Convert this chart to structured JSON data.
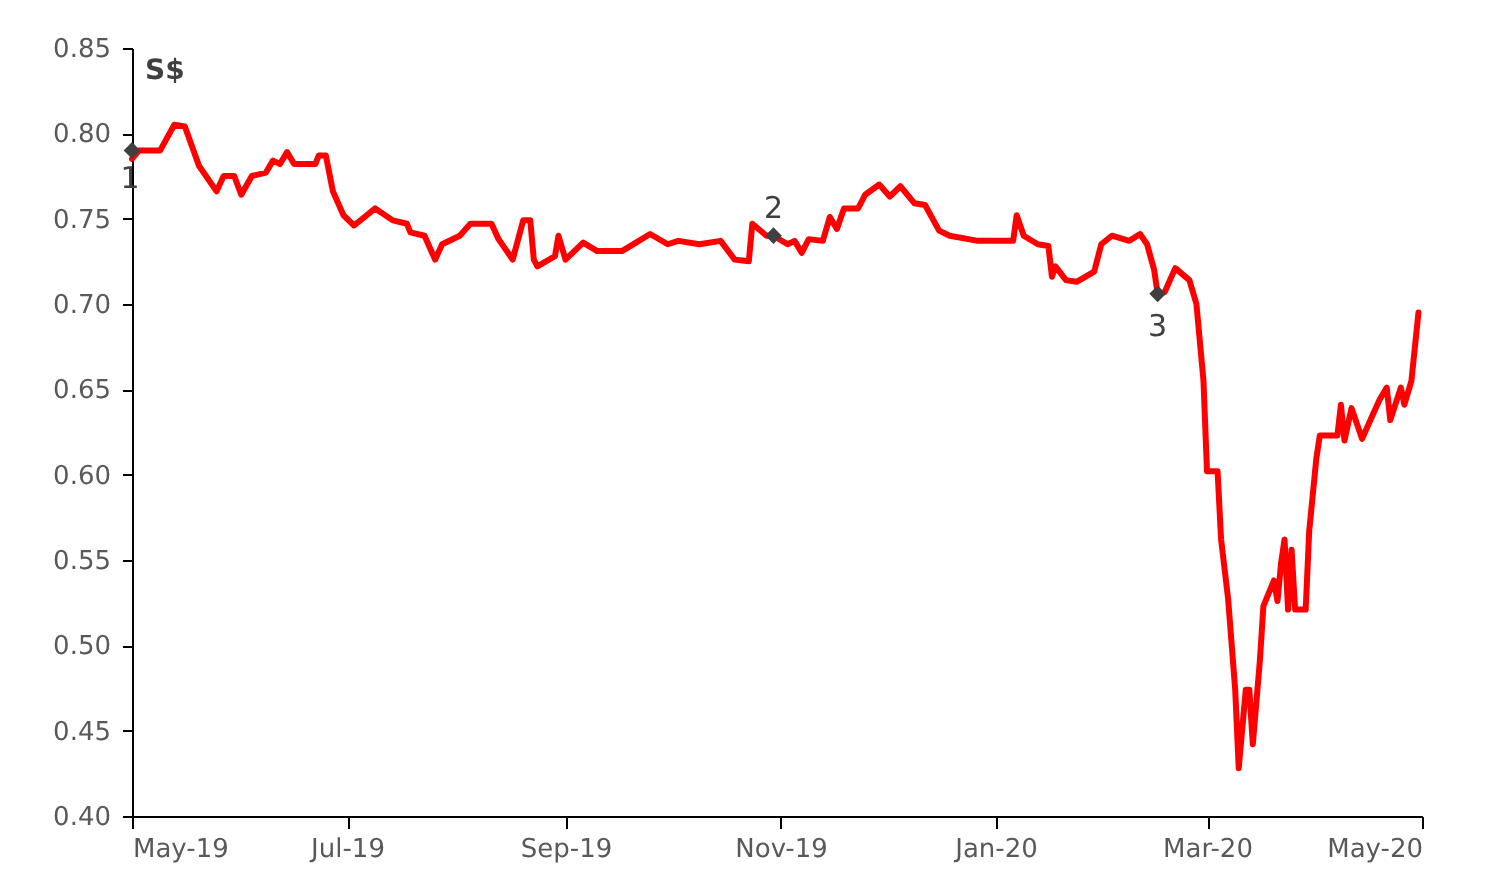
{
  "chart_data": {
    "type": "line",
    "ylabel": "S$",
    "xlim": [
      "2019-05-01",
      "2020-05-01"
    ],
    "ylim": [
      0.4,
      0.85
    ],
    "xticks": [
      {
        "value": "2019-05-01",
        "label": "May-19"
      },
      {
        "value": "2019-07-01",
        "label": "Jul-19"
      },
      {
        "value": "2019-09-01",
        "label": "Sep-19"
      },
      {
        "value": "2019-11-01",
        "label": "Nov-19"
      },
      {
        "value": "2020-01-01",
        "label": "Jan-20"
      },
      {
        "value": "2020-03-01",
        "label": "Mar-20"
      },
      {
        "value": "2020-05-01",
        "label": "May-20"
      }
    ],
    "yticks": [
      {
        "value": 0.4,
        "label": "0.40"
      },
      {
        "value": 0.45,
        "label": "0.45"
      },
      {
        "value": 0.5,
        "label": "0.50"
      },
      {
        "value": 0.55,
        "label": "0.55"
      },
      {
        "value": 0.6,
        "label": "0.60"
      },
      {
        "value": 0.65,
        "label": "0.65"
      },
      {
        "value": 0.7,
        "label": "0.70"
      },
      {
        "value": 0.75,
        "label": "0.75"
      },
      {
        "value": 0.8,
        "label": "0.80"
      },
      {
        "value": 0.85,
        "label": "0.85"
      }
    ],
    "series": [
      {
        "color": "#ff0000",
        "x": [
          "2019-05-01",
          "2019-05-03",
          "2019-05-09",
          "2019-05-13",
          "2019-05-16",
          "2019-05-20",
          "2019-05-25",
          "2019-05-27",
          "2019-05-30",
          "2019-06-01",
          "2019-06-04",
          "2019-06-08",
          "2019-06-10",
          "2019-06-12",
          "2019-06-14",
          "2019-06-16",
          "2019-06-22",
          "2019-06-23",
          "2019-06-25",
          "2019-06-27",
          "2019-06-30",
          "2019-07-03",
          "2019-07-09",
          "2019-07-14",
          "2019-07-18",
          "2019-07-19",
          "2019-07-23",
          "2019-07-26",
          "2019-07-28",
          "2019-08-02",
          "2019-08-05",
          "2019-08-11",
          "2019-08-13",
          "2019-08-17",
          "2019-08-20",
          "2019-08-22",
          "2019-08-23",
          "2019-08-24",
          "2019-08-29",
          "2019-08-30",
          "2019-09-01",
          "2019-09-06",
          "2019-09-10",
          "2019-09-17",
          "2019-09-21",
          "2019-09-25",
          "2019-09-30",
          "2019-10-03",
          "2019-10-09",
          "2019-10-15",
          "2019-10-19",
          "2019-10-23",
          "2019-10-24",
          "2019-10-28",
          "2019-10-30",
          "2019-11-03",
          "2019-11-05",
          "2019-11-07",
          "2019-11-09",
          "2019-11-13",
          "2019-11-15",
          "2019-11-17",
          "2019-11-19",
          "2019-11-23",
          "2019-11-25",
          "2019-11-29",
          "2019-12-02",
          "2019-12-05",
          "2019-12-09",
          "2019-12-12",
          "2019-12-16",
          "2019-12-19",
          "2019-12-27",
          "2020-01-04",
          "2020-01-06",
          "2020-01-07",
          "2020-01-09",
          "2020-01-13",
          "2020-01-16",
          "2020-01-17",
          "2020-01-18",
          "2020-01-21",
          "2020-01-24",
          "2020-01-29",
          "2020-01-31",
          "2020-02-03",
          "2020-02-08",
          "2020-02-11",
          "2020-02-13",
          "2020-02-15",
          "2020-02-16",
          "2020-02-18",
          "2020-02-21",
          "2020-02-25",
          "2020-02-27",
          "2020-02-29",
          "2020-03-01",
          "2020-03-04",
          "2020-03-05",
          "2020-03-07",
          "2020-03-09",
          "2020-03-10",
          "2020-03-12",
          "2020-03-13",
          "2020-03-14",
          "2020-03-16",
          "2020-03-17",
          "2020-03-20",
          "2020-03-21",
          "2020-03-22",
          "2020-03-23",
          "2020-03-24",
          "2020-03-25",
          "2020-03-26",
          "2020-03-29",
          "2020-03-30",
          "2020-04-01",
          "2020-04-02",
          "2020-04-07",
          "2020-04-08",
          "2020-04-09",
          "2020-04-11",
          "2020-04-14",
          "2020-04-17",
          "2020-04-19",
          "2020-04-21",
          "2020-04-22",
          "2020-04-25",
          "2020-04-26",
          "2020-04-28",
          "2020-04-29",
          "2020-04-30"
        ],
        "values": [
          0.785,
          0.79,
          0.79,
          0.805,
          0.804,
          0.781,
          0.766,
          0.775,
          0.775,
          0.764,
          0.775,
          0.777,
          0.784,
          0.782,
          0.789,
          0.782,
          0.782,
          0.787,
          0.787,
          0.766,
          0.752,
          0.746,
          0.756,
          0.749,
          0.747,
          0.742,
          0.74,
          0.726,
          0.735,
          0.74,
          0.747,
          0.747,
          0.738,
          0.726,
          0.749,
          0.749,
          0.726,
          0.722,
          0.728,
          0.74,
          0.726,
          0.736,
          0.731,
          0.731,
          0.736,
          0.741,
          0.735,
          0.737,
          0.735,
          0.737,
          0.726,
          0.725,
          0.747,
          0.74,
          0.74,
          0.735,
          0.737,
          0.73,
          0.738,
          0.737,
          0.751,
          0.744,
          0.756,
          0.756,
          0.764,
          0.77,
          0.763,
          0.769,
          0.759,
          0.758,
          0.743,
          0.74,
          0.737,
          0.737,
          0.737,
          0.752,
          0.74,
          0.735,
          0.734,
          0.716,
          0.722,
          0.714,
          0.713,
          0.719,
          0.735,
          0.74,
          0.737,
          0.741,
          0.735,
          0.72,
          0.706,
          0.707,
          0.721,
          0.714,
          0.7,
          0.655,
          0.602,
          0.602,
          0.562,
          0.527,
          0.474,
          0.428,
          0.474,
          0.474,
          0.442,
          0.491,
          0.523,
          0.538,
          0.526,
          0.548,
          0.562,
          0.521,
          0.556,
          0.521,
          0.521,
          0.567,
          0.609,
          0.623,
          0.623,
          0.641,
          0.62,
          0.639,
          0.621,
          0.635,
          0.644,
          0.651,
          0.632,
          0.651,
          0.641,
          0.655,
          0.675,
          0.695
        ]
      },
      {
        "type": "scatter",
        "color": "#404040",
        "marker": "diamond",
        "x": [
          "2019-05-01",
          "2019-10-30",
          "2020-02-16"
        ],
        "values": [
          0.79,
          0.74,
          0.706
        ]
      }
    ],
    "annotations": [
      {
        "text": "1",
        "x": "2019-05-01",
        "y": 0.79
      },
      {
        "text": "2",
        "x": "2019-10-30",
        "y": 0.74
      },
      {
        "text": "3",
        "x": "2020-02-16",
        "y": 0.706
      }
    ]
  }
}
